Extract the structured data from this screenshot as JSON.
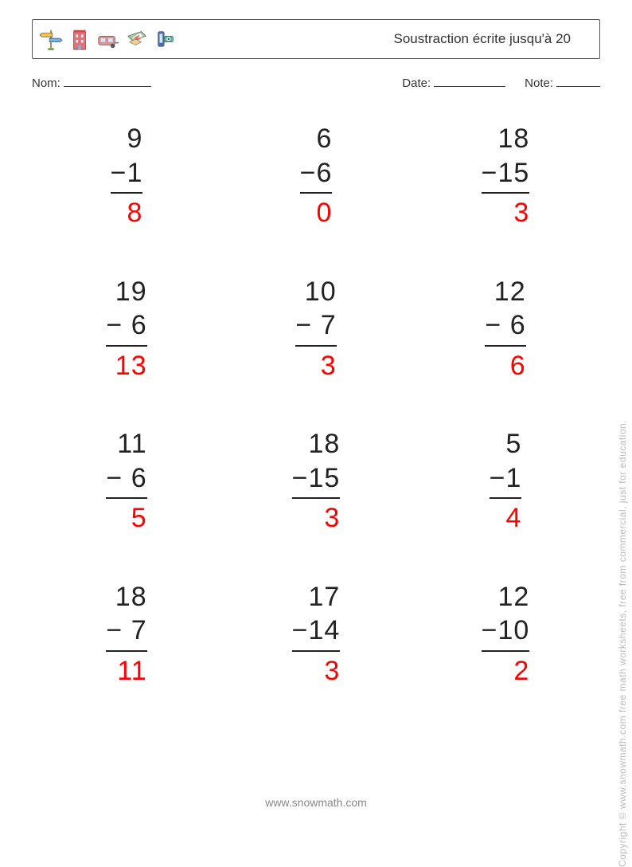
{
  "header": {
    "title": "Soustraction écrite jusqu'à 20"
  },
  "meta": {
    "name_label": "Nom:",
    "date_label": "Date:",
    "note_label": "Note:"
  },
  "problems": [
    {
      "minuend": "9",
      "subtrahend": "1",
      "answer": "8"
    },
    {
      "minuend": "6",
      "subtrahend": "6",
      "answer": "0"
    },
    {
      "minuend": "18",
      "subtrahend": "15",
      "answer": "3"
    },
    {
      "minuend": "19",
      "subtrahend": "6",
      "answer": "13"
    },
    {
      "minuend": "10",
      "subtrahend": "7",
      "answer": "3"
    },
    {
      "minuend": "12",
      "subtrahend": "6",
      "answer": "6"
    },
    {
      "minuend": "11",
      "subtrahend": "6",
      "answer": "5"
    },
    {
      "minuend": "18",
      "subtrahend": "15",
      "answer": "3"
    },
    {
      "minuend": "5",
      "subtrahend": "1",
      "answer": "4"
    },
    {
      "minuend": "18",
      "subtrahend": "7",
      "answer": "11"
    },
    {
      "minuend": "17",
      "subtrahend": "14",
      "answer": "3"
    },
    {
      "minuend": "12",
      "subtrahend": "10",
      "answer": "2"
    }
  ],
  "footer": {
    "url": "www.snowmath.com",
    "copyright": "Copyright © www.snowmath.com  free math worksheets, free from commercial,  just for education."
  },
  "style": {
    "answer_color": "#ff0000",
    "text_color": "#222222",
    "font_size_problem": 34,
    "grid_cols": 3,
    "grid_rows": 4
  }
}
